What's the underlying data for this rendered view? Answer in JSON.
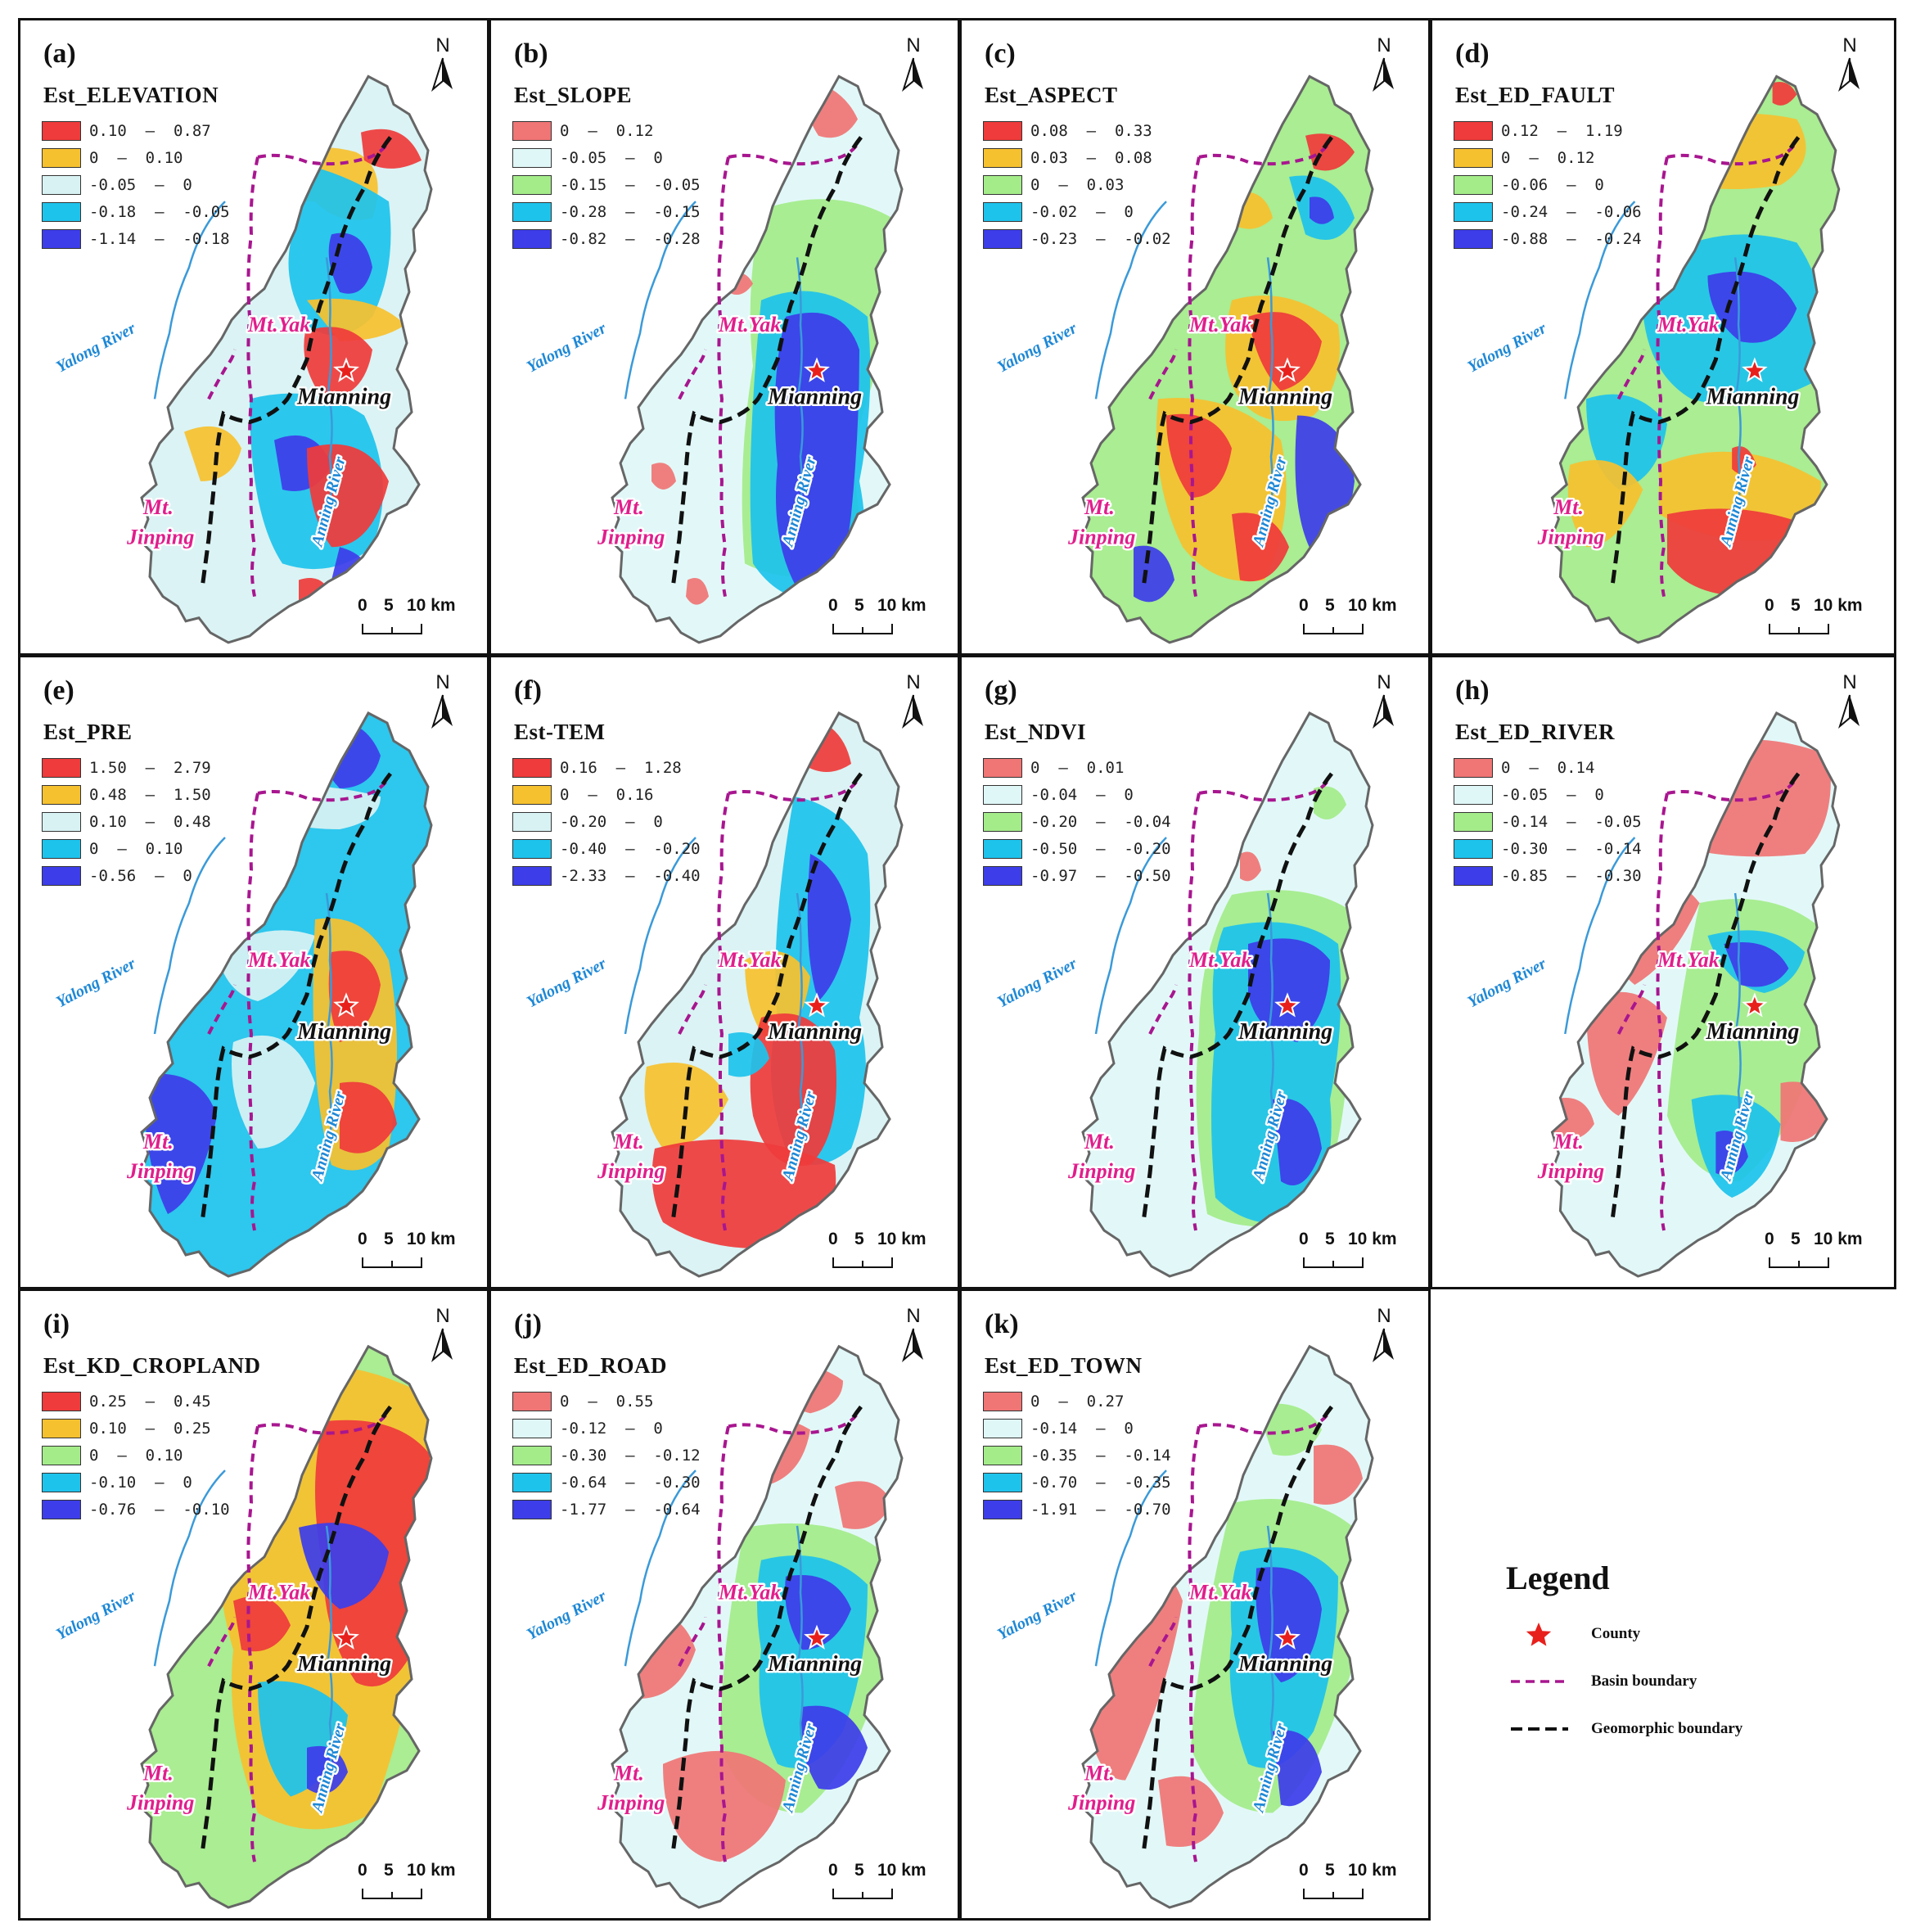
{
  "labels": {
    "yak": "Mt.Yak",
    "mianning": "Mianning",
    "jinping_1": "Mt.",
    "jinping_2": "Jinping",
    "yalong": "Yalong River",
    "anning": "Anning River",
    "north": "N",
    "scale_zero": "0",
    "scale_five": "5",
    "scale_ten": "10 km"
  },
  "legend": {
    "title": "Legend",
    "items": [
      {
        "label": "County",
        "symbol": "red-star",
        "color": "#e8201c"
      },
      {
        "label": "Basin boundary",
        "symbol": "dashed-line",
        "color": "#a8168f"
      },
      {
        "label": "Geomorphic boundary",
        "symbol": "dashed-line",
        "color": "#111111"
      }
    ]
  },
  "color_schemes": {
    "warm_to_blue": [
      "#ef3b3b",
      "#f6c12f",
      "#d8f2f3",
      "#1ec3ec",
      "#3d3de9"
    ],
    "pink_to_blue": [
      "#f07575",
      "#e0f7f7",
      "#a4ec8a",
      "#1ec3ec",
      "#3d3de9"
    ],
    "red_yellow_green_blue": [
      "#ef3b3b",
      "#f6c12f",
      "#a4ec8a",
      "#1ec3ec",
      "#3d3de9"
    ]
  },
  "panels": [
    {
      "letter": "(a)",
      "title": "Est_ELEVATION",
      "scheme": "warm_to_blue",
      "classes": [
        "0.10  –  0.87",
        "0  –  0.10",
        "-0.05  –  0",
        "-0.18  –  -0.05",
        "-1.14  –  -0.18"
      ]
    },
    {
      "letter": "(b)",
      "title": "Est_SLOPE",
      "scheme": "pink_to_blue",
      "classes": [
        "0  –  0.12",
        "-0.05  –  0",
        "-0.15  –  -0.05",
        "-0.28  –  -0.15",
        "-0.82  –  -0.28"
      ]
    },
    {
      "letter": "(c)",
      "title": "Est_ASPECT",
      "scheme": "red_yellow_green_blue",
      "classes": [
        "0.08  –  0.33",
        "0.03  –  0.08",
        "0  –  0.03",
        "-0.02  –  0",
        "-0.23  –  -0.02"
      ]
    },
    {
      "letter": "(d)",
      "title": "Est_ED_FAULT",
      "scheme": "red_yellow_green_blue",
      "classes": [
        "0.12  –  1.19",
        "0  –  0.12",
        "-0.06  –  0",
        "-0.24  –  -0.06",
        "-0.88  –  -0.24"
      ]
    },
    {
      "letter": "(e)",
      "title": "Est_PRE",
      "scheme": "warm_to_blue",
      "classes": [
        "1.50  –  2.79",
        "0.48  –  1.50",
        "0.10  –  0.48",
        "0  –  0.10",
        "-0.56  –  0"
      ]
    },
    {
      "letter": "(f)",
      "title": "Est-TEM",
      "scheme": "warm_to_blue",
      "classes": [
        "0.16  –  1.28",
        "0  –  0.16",
        "-0.20  –  0",
        "-0.40  –  -0.20",
        "-2.33  –  -0.40"
      ]
    },
    {
      "letter": "(g)",
      "title": "Est_NDVI",
      "scheme": "pink_to_blue",
      "classes": [
        "0  –  0.01",
        "-0.04  –  0",
        "-0.20  –  -0.04",
        "-0.50  –  -0.20",
        "-0.97  –  -0.50"
      ]
    },
    {
      "letter": "(h)",
      "title": "Est_ED_RIVER",
      "scheme": "pink_to_blue",
      "classes": [
        "0  –  0.14",
        "-0.05  –  0",
        "-0.14  –  -0.05",
        "-0.30  –  -0.14",
        "-0.85  –  -0.30"
      ]
    },
    {
      "letter": "(i)",
      "title": "Est_KD_CROPLAND",
      "scheme": "red_yellow_green_blue",
      "classes": [
        "0.25  –  0.45",
        "0.10  –  0.25",
        "0  –  0.10",
        "-0.10  –  0",
        "-0.76  –  -0.10"
      ]
    },
    {
      "letter": "(j)",
      "title": "Est_ED_ROAD",
      "scheme": "pink_to_blue",
      "classes": [
        "0  –  0.55",
        "-0.12  –  0",
        "-0.30  –  -0.12",
        "-0.64  –  -0.30",
        "-1.77  –  -0.64"
      ]
    },
    {
      "letter": "(k)",
      "title": "Est_ED_TOWN",
      "scheme": "pink_to_blue",
      "classes": [
        "0  –  0.27",
        "-0.14  –  0",
        "-0.35  –  -0.14",
        "-0.70  –  -0.35",
        "-1.91  –  -0.70"
      ]
    }
  ]
}
